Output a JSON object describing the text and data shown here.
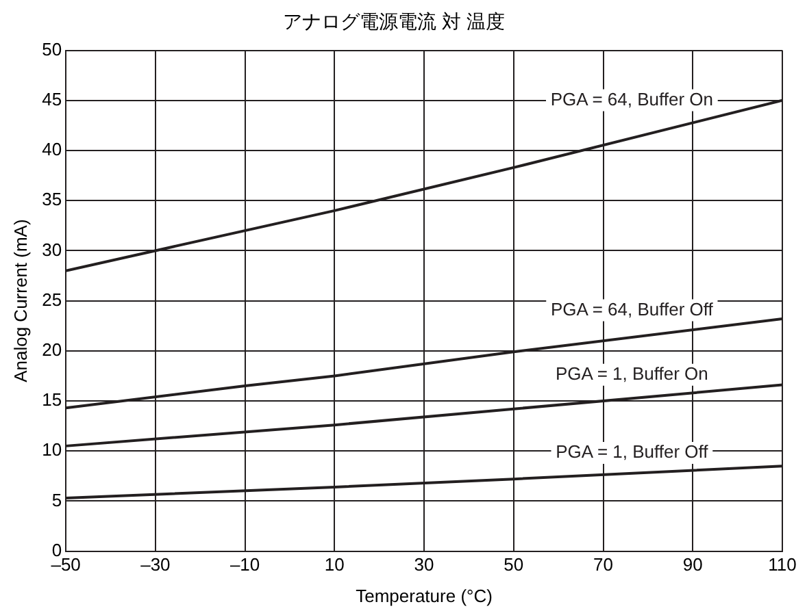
{
  "chart_data": {
    "type": "line",
    "title": "アナログ電源電流 対 温度",
    "xlabel": "Temperature (°C)",
    "ylabel": "Analog Current (mA)",
    "xlim": [
      -50,
      110
    ],
    "xticks": [
      {
        "value": -50,
        "label": "–50"
      },
      {
        "value": -30,
        "label": "–30"
      },
      {
        "value": -10,
        "label": "–10"
      },
      10,
      30,
      50,
      70,
      90,
      110
    ],
    "ylim": [
      0,
      50
    ],
    "yticks": [
      0,
      5,
      10,
      15,
      20,
      25,
      30,
      35,
      40,
      45,
      50
    ],
    "grid": true,
    "legend": false,
    "marker": "none",
    "line_style": "solid",
    "series": [
      {
        "name": "PGA = 64, Buffer On",
        "color": "#231f20",
        "x": [
          -50,
          10,
          50,
          110
        ],
        "values": [
          28,
          34,
          38.3,
          45
        ]
      },
      {
        "name": "PGA = 64, Buffer Off",
        "color": "#231f20",
        "x": [
          -50,
          -10,
          10,
          50,
          110
        ],
        "values": [
          14.3,
          16.5,
          17.5,
          19.9,
          23.2
        ]
      },
      {
        "name": "PGA = 1, Buffer On",
        "color": "#231f20",
        "x": [
          -50,
          10,
          50,
          110
        ],
        "values": [
          10.5,
          12.6,
          14.2,
          16.6
        ]
      },
      {
        "name": "PGA = 1, Buffer Off",
        "color": "#231f20",
        "x": [
          -50,
          10,
          50,
          110
        ],
        "values": [
          5.3,
          6.4,
          7.2,
          8.5
        ]
      }
    ]
  }
}
